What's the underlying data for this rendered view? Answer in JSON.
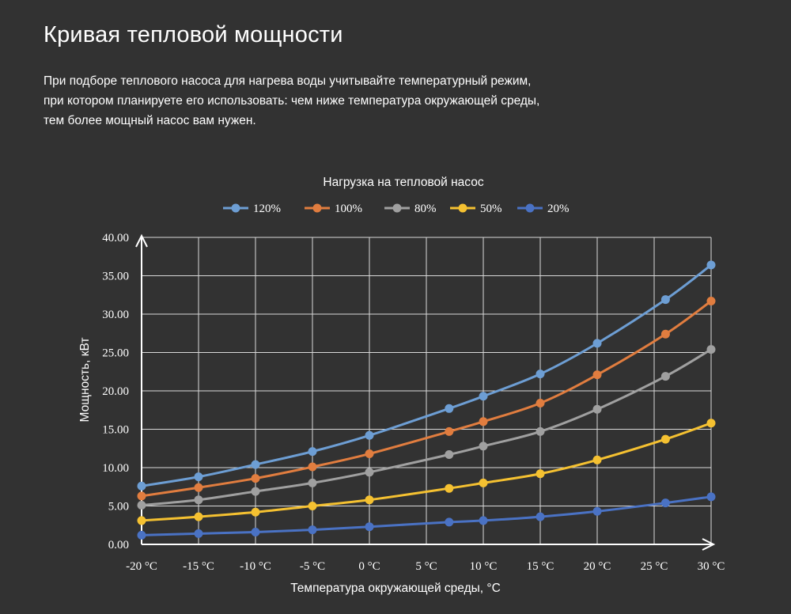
{
  "page": {
    "title": "Кривая тепловой мощности",
    "intro_lines": [
      "При подборе теплового насоса для нагрева воды учитывайте температурный режим,",
      "при котором планируете его использовать: чем ниже температура окружающей среды,",
      "тем более мощный насос вам нужен."
    ]
  },
  "chart_data": {
    "type": "line",
    "title": "Нагрузка на тепловой насос",
    "xlabel": "Температура окружающей среды, °C",
    "ylabel": "Мощность, кВт",
    "xlim": [
      -20,
      30
    ],
    "ylim": [
      0,
      40
    ],
    "x_ticks": [
      -20,
      -15,
      -10,
      -5,
      0,
      5,
      10,
      15,
      20,
      25,
      30
    ],
    "x_tick_labels": [
      "-20 °C",
      "-15 °C",
      "-10 °C",
      "-5 °C",
      "0 °C",
      "5 °C",
      "10 °C",
      "15 °C",
      "20 °C",
      "25 °C",
      "30 °C"
    ],
    "y_ticks": [
      0,
      5,
      10,
      15,
      20,
      25,
      30,
      35,
      40
    ],
    "y_tick_labels": [
      "0.00",
      "5.00",
      "10.00",
      "15.00",
      "20.00",
      "25.00",
      "30.00",
      "35.00",
      "40.00"
    ],
    "grid": true,
    "legend_position": "top-center",
    "x": [
      -20,
      -15,
      -10,
      -5,
      0,
      7,
      10,
      15,
      20,
      26,
      30
    ],
    "series": [
      {
        "name": "120%",
        "color": "#6d9ed4",
        "values": [
          7.6,
          8.8,
          10.4,
          12.1,
          14.2,
          17.7,
          19.3,
          22.2,
          26.2,
          31.9,
          36.4
        ]
      },
      {
        "name": "100%",
        "color": "#e17d3f",
        "values": [
          6.3,
          7.4,
          8.6,
          10.1,
          11.8,
          14.7,
          16.0,
          18.4,
          22.1,
          27.4,
          31.7
        ]
      },
      {
        "name": "80%",
        "color": "#a0a0a0",
        "values": [
          5.1,
          5.8,
          6.9,
          8.0,
          9.4,
          11.7,
          12.8,
          14.7,
          17.6,
          21.9,
          25.4
        ]
      },
      {
        "name": "50%",
        "color": "#f5c131",
        "values": [
          3.1,
          3.6,
          4.2,
          5.0,
          5.8,
          7.3,
          8.0,
          9.2,
          11.0,
          13.7,
          15.8
        ]
      },
      {
        "name": "20%",
        "color": "#4a72c4",
        "values": [
          1.2,
          1.4,
          1.6,
          1.9,
          2.3,
          2.9,
          3.1,
          3.6,
          4.3,
          5.4,
          6.2
        ]
      }
    ]
  }
}
